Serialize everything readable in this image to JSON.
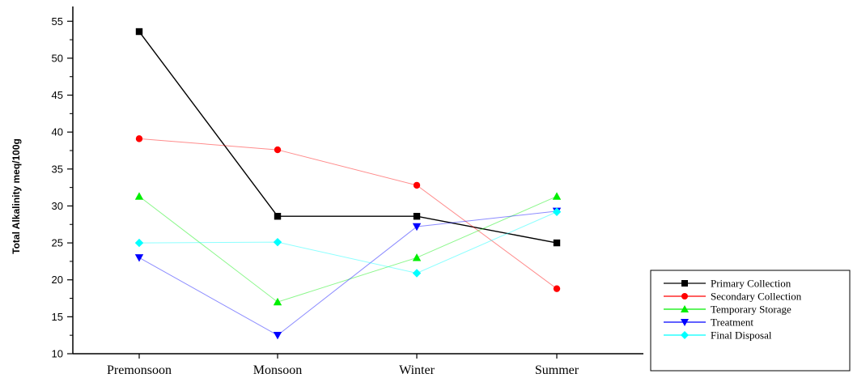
{
  "chart_data": {
    "type": "line",
    "categories": [
      "Premonsoon",
      "Monsoon",
      "Winter",
      "Summer"
    ],
    "ylabel": "Total Alkalinity meq/100g",
    "xlabel": "",
    "ylim": [
      10,
      57
    ],
    "yticks": [
      10,
      15,
      20,
      25,
      30,
      35,
      40,
      45,
      50,
      55
    ],
    "grid": false,
    "legend_position": "bottom-right, outside plot",
    "series": [
      {
        "name": "Primary Collection",
        "values": [
          53.6,
          28.6,
          28.6,
          25.0
        ],
        "color": "#000000",
        "marker": "square"
      },
      {
        "name": "Secondary Collection",
        "values": [
          39.1,
          37.6,
          32.8,
          18.8
        ],
        "color": "#ff0000",
        "marker": "circle"
      },
      {
        "name": "Temporary Storage",
        "values": [
          31.3,
          17.0,
          23.0,
          31.3
        ],
        "color": "#00ee00",
        "marker": "triangle-up"
      },
      {
        "name": "Treatment",
        "values": [
          23.0,
          12.5,
          27.2,
          29.3
        ],
        "color": "#0000ff",
        "marker": "triangle-down"
      },
      {
        "name": "Final Disposal",
        "values": [
          25.0,
          25.1,
          20.9,
          29.2
        ],
        "color": "#00ffff",
        "marker": "diamond"
      }
    ]
  }
}
